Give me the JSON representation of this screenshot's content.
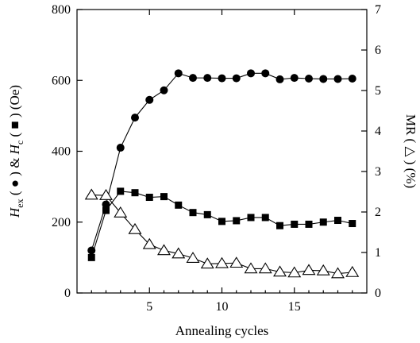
{
  "chart_data": {
    "type": "line",
    "xlabel": "Annealing cycles",
    "ylabel_left_parts": [
      "H",
      "ex",
      " ( ",
      "●",
      " ) & ",
      "H",
      "c",
      " ( ",
      "■",
      " ) (Oe)"
    ],
    "ylabel_right": "MR ( △ ) (%)",
    "xlim": [
      0,
      20
    ],
    "ylim_left": [
      0,
      800
    ],
    "ylim_right": [
      0,
      7
    ],
    "x_ticks": [
      5,
      10,
      15
    ],
    "x_tick_labels": [
      "5",
      "10",
      "15"
    ],
    "y_left_ticks": [
      0,
      200,
      400,
      600,
      800
    ],
    "y_left_tick_labels": [
      "0",
      "200",
      "400",
      "600",
      "800"
    ],
    "y_right_ticks": [
      0,
      1,
      2,
      3,
      4,
      5,
      6,
      7
    ],
    "y_right_tick_labels": [
      "0",
      "1",
      "2",
      "3",
      "4",
      "5",
      "6",
      "7"
    ],
    "series": [
      {
        "marker": "circle",
        "axis": "left",
        "x": [
          1,
          2,
          3,
          4,
          5,
          6,
          7,
          8,
          9,
          10,
          11,
          12,
          13,
          14,
          15,
          16,
          17,
          18,
          19
        ],
        "values": [
          120,
          250,
          410,
          495,
          545,
          572,
          620,
          607,
          607,
          606,
          606,
          620,
          620,
          603,
          607,
          605,
          604,
          604,
          605
        ]
      },
      {
        "marker": "square",
        "axis": "left",
        "x": [
          1,
          2,
          3,
          4,
          5,
          6,
          7,
          8,
          9,
          10,
          11,
          12,
          13,
          14,
          15,
          16,
          17,
          18,
          19
        ],
        "values": [
          100,
          233,
          287,
          283,
          270,
          272,
          248,
          227,
          221,
          202,
          204,
          213,
          213,
          190,
          194,
          194,
          200,
          205,
          196
        ]
      },
      {
        "marker": "triangle",
        "axis": "right",
        "x": [
          1,
          2,
          3,
          4,
          5,
          6,
          7,
          8,
          9,
          10,
          11,
          12,
          13,
          14,
          15,
          16,
          17,
          18,
          19
        ],
        "values": [
          2.42,
          2.41,
          1.98,
          1.57,
          1.2,
          1.05,
          0.97,
          0.86,
          0.72,
          0.73,
          0.74,
          0.6,
          0.6,
          0.52,
          0.5,
          0.56,
          0.55,
          0.48,
          0.51
        ]
      }
    ]
  }
}
